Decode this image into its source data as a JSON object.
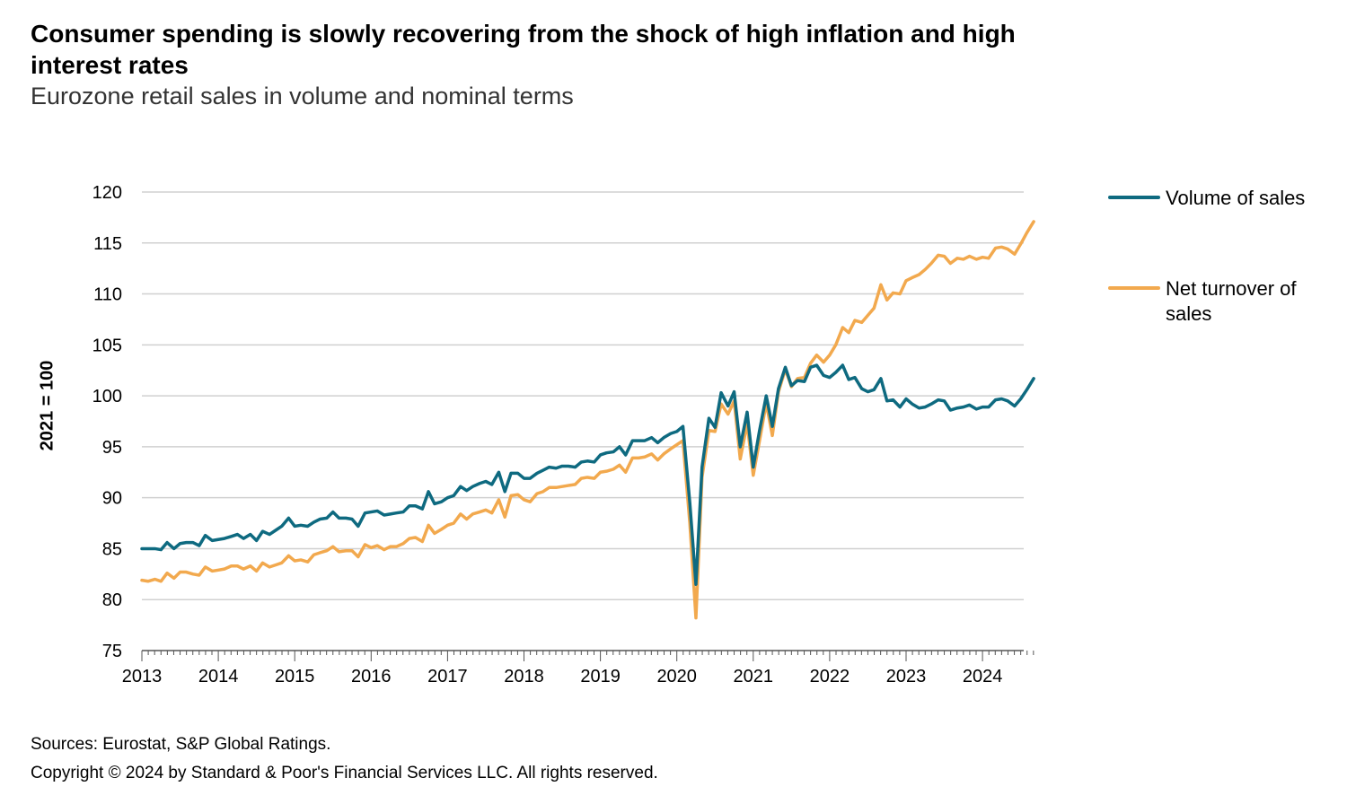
{
  "chart_data": {
    "type": "line",
    "title": "Consumer spending is slowly recovering from the shock of high inflation and high interest rates",
    "subtitle": "Eurozone retail sales in volume and nominal terms",
    "ylabel": "2021 = 100",
    "xlabel": "",
    "ylim": [
      75,
      120
    ],
    "xlim": [
      2013,
      2024.67
    ],
    "yticks": [
      75,
      80,
      85,
      90,
      95,
      100,
      105,
      110,
      115,
      120
    ],
    "xticks": [
      "2013",
      "2014",
      "2015",
      "2016",
      "2017",
      "2018",
      "2019",
      "2020",
      "2021",
      "2022",
      "2023",
      "2024"
    ],
    "grid": true,
    "legend_position": "right",
    "series": [
      {
        "name": "Volume of sales",
        "color": "#0e6a80",
        "points": [
          [
            2013.0,
            85.0
          ],
          [
            2013.08,
            85.0
          ],
          [
            2013.17,
            85.0
          ],
          [
            2013.25,
            84.9
          ],
          [
            2013.33,
            85.6
          ],
          [
            2013.42,
            85.0
          ],
          [
            2013.5,
            85.5
          ],
          [
            2013.58,
            85.6
          ],
          [
            2013.67,
            85.6
          ],
          [
            2013.75,
            85.3
          ],
          [
            2013.83,
            86.3
          ],
          [
            2013.92,
            85.8
          ],
          [
            2014.0,
            85.9
          ],
          [
            2014.08,
            86.0
          ],
          [
            2014.17,
            86.2
          ],
          [
            2014.25,
            86.4
          ],
          [
            2014.33,
            86.0
          ],
          [
            2014.42,
            86.4
          ],
          [
            2014.5,
            85.8
          ],
          [
            2014.58,
            86.7
          ],
          [
            2014.67,
            86.4
          ],
          [
            2014.75,
            86.8
          ],
          [
            2014.83,
            87.2
          ],
          [
            2014.92,
            88.0
          ],
          [
            2015.0,
            87.2
          ],
          [
            2015.08,
            87.3
          ],
          [
            2015.17,
            87.2
          ],
          [
            2015.25,
            87.6
          ],
          [
            2015.33,
            87.9
          ],
          [
            2015.42,
            88.0
          ],
          [
            2015.5,
            88.6
          ],
          [
            2015.58,
            88.0
          ],
          [
            2015.67,
            88.0
          ],
          [
            2015.75,
            87.9
          ],
          [
            2015.83,
            87.2
          ],
          [
            2015.92,
            88.5
          ],
          [
            2016.0,
            88.6
          ],
          [
            2016.08,
            88.7
          ],
          [
            2016.17,
            88.3
          ],
          [
            2016.25,
            88.4
          ],
          [
            2016.33,
            88.5
          ],
          [
            2016.42,
            88.6
          ],
          [
            2016.5,
            89.2
          ],
          [
            2016.58,
            89.2
          ],
          [
            2016.67,
            88.9
          ],
          [
            2016.75,
            90.6
          ],
          [
            2016.83,
            89.4
          ],
          [
            2016.92,
            89.6
          ],
          [
            2017.0,
            90.0
          ],
          [
            2017.08,
            90.2
          ],
          [
            2017.17,
            91.1
          ],
          [
            2017.25,
            90.7
          ],
          [
            2017.33,
            91.1
          ],
          [
            2017.42,
            91.4
          ],
          [
            2017.5,
            91.6
          ],
          [
            2017.58,
            91.3
          ],
          [
            2017.67,
            92.5
          ],
          [
            2017.75,
            90.6
          ],
          [
            2017.83,
            92.4
          ],
          [
            2017.92,
            92.4
          ],
          [
            2018.0,
            91.9
          ],
          [
            2018.08,
            91.9
          ],
          [
            2018.17,
            92.4
          ],
          [
            2018.25,
            92.7
          ],
          [
            2018.33,
            93.0
          ],
          [
            2018.42,
            92.9
          ],
          [
            2018.5,
            93.1
          ],
          [
            2018.58,
            93.1
          ],
          [
            2018.67,
            93.0
          ],
          [
            2018.75,
            93.5
          ],
          [
            2018.83,
            93.6
          ],
          [
            2018.92,
            93.5
          ],
          [
            2019.0,
            94.2
          ],
          [
            2019.08,
            94.4
          ],
          [
            2019.17,
            94.5
          ],
          [
            2019.25,
            95.0
          ],
          [
            2019.33,
            94.2
          ],
          [
            2019.42,
            95.6
          ],
          [
            2019.5,
            95.6
          ],
          [
            2019.58,
            95.6
          ],
          [
            2019.67,
            95.9
          ],
          [
            2019.75,
            95.4
          ],
          [
            2019.83,
            95.9
          ],
          [
            2019.92,
            96.3
          ],
          [
            2020.0,
            96.5
          ],
          [
            2020.08,
            97.0
          ],
          [
            2020.17,
            89.5
          ],
          [
            2020.25,
            81.5
          ],
          [
            2020.33,
            93.0
          ],
          [
            2020.42,
            97.8
          ],
          [
            2020.5,
            96.9
          ],
          [
            2020.58,
            100.3
          ],
          [
            2020.67,
            99.0
          ],
          [
            2020.75,
            100.4
          ],
          [
            2020.83,
            95.0
          ],
          [
            2020.92,
            98.4
          ],
          [
            2021.0,
            93.0
          ],
          [
            2021.08,
            96.5
          ],
          [
            2021.17,
            100.0
          ],
          [
            2021.25,
            97.0
          ],
          [
            2021.33,
            100.7
          ],
          [
            2021.42,
            102.8
          ],
          [
            2021.5,
            101.0
          ],
          [
            2021.58,
            101.5
          ],
          [
            2021.67,
            101.4
          ],
          [
            2021.75,
            102.8
          ],
          [
            2021.83,
            103.0
          ],
          [
            2021.92,
            102.0
          ],
          [
            2022.0,
            101.8
          ],
          [
            2022.08,
            102.3
          ],
          [
            2022.17,
            103.0
          ],
          [
            2022.25,
            101.6
          ],
          [
            2022.33,
            101.8
          ],
          [
            2022.42,
            100.7
          ],
          [
            2022.5,
            100.4
          ],
          [
            2022.58,
            100.6
          ],
          [
            2022.67,
            101.7
          ],
          [
            2022.75,
            99.5
          ],
          [
            2022.83,
            99.6
          ],
          [
            2022.92,
            98.9
          ],
          [
            2023.0,
            99.7
          ],
          [
            2023.08,
            99.2
          ],
          [
            2023.17,
            98.8
          ],
          [
            2023.25,
            98.9
          ],
          [
            2023.33,
            99.2
          ],
          [
            2023.42,
            99.6
          ],
          [
            2023.5,
            99.5
          ],
          [
            2023.58,
            98.6
          ],
          [
            2023.67,
            98.8
          ],
          [
            2023.75,
            98.9
          ],
          [
            2023.83,
            99.1
          ],
          [
            2023.92,
            98.7
          ],
          [
            2024.0,
            98.9
          ],
          [
            2024.08,
            98.9
          ],
          [
            2024.17,
            99.6
          ],
          [
            2024.25,
            99.7
          ],
          [
            2024.33,
            99.5
          ],
          [
            2024.42,
            99.0
          ],
          [
            2024.5,
            99.7
          ],
          [
            2024.58,
            100.6
          ],
          [
            2024.67,
            101.7
          ]
        ]
      },
      {
        "name": "Net turnover of sales",
        "color": "#f2a94e",
        "points": [
          [
            2013.0,
            81.9
          ],
          [
            2013.08,
            81.8
          ],
          [
            2013.17,
            82.0
          ],
          [
            2013.25,
            81.8
          ],
          [
            2013.33,
            82.6
          ],
          [
            2013.42,
            82.1
          ],
          [
            2013.5,
            82.7
          ],
          [
            2013.58,
            82.7
          ],
          [
            2013.67,
            82.5
          ],
          [
            2013.75,
            82.4
          ],
          [
            2013.83,
            83.2
          ],
          [
            2013.92,
            82.8
          ],
          [
            2014.0,
            82.9
          ],
          [
            2014.08,
            83.0
          ],
          [
            2014.17,
            83.3
          ],
          [
            2014.25,
            83.3
          ],
          [
            2014.33,
            83.0
          ],
          [
            2014.42,
            83.3
          ],
          [
            2014.5,
            82.8
          ],
          [
            2014.58,
            83.6
          ],
          [
            2014.67,
            83.2
          ],
          [
            2014.75,
            83.4
          ],
          [
            2014.83,
            83.6
          ],
          [
            2014.92,
            84.3
          ],
          [
            2015.0,
            83.8
          ],
          [
            2015.08,
            83.9
          ],
          [
            2015.17,
            83.7
          ],
          [
            2015.25,
            84.4
          ],
          [
            2015.33,
            84.6
          ],
          [
            2015.42,
            84.8
          ],
          [
            2015.5,
            85.2
          ],
          [
            2015.58,
            84.7
          ],
          [
            2015.67,
            84.8
          ],
          [
            2015.75,
            84.8
          ],
          [
            2015.83,
            84.2
          ],
          [
            2015.92,
            85.4
          ],
          [
            2016.0,
            85.1
          ],
          [
            2016.08,
            85.3
          ],
          [
            2016.17,
            84.9
          ],
          [
            2016.25,
            85.2
          ],
          [
            2016.33,
            85.2
          ],
          [
            2016.42,
            85.5
          ],
          [
            2016.5,
            86.0
          ],
          [
            2016.58,
            86.1
          ],
          [
            2016.67,
            85.7
          ],
          [
            2016.75,
            87.3
          ],
          [
            2016.83,
            86.5
          ],
          [
            2016.92,
            86.9
          ],
          [
            2017.0,
            87.3
          ],
          [
            2017.08,
            87.5
          ],
          [
            2017.17,
            88.4
          ],
          [
            2017.25,
            87.9
          ],
          [
            2017.33,
            88.4
          ],
          [
            2017.42,
            88.6
          ],
          [
            2017.5,
            88.8
          ],
          [
            2017.58,
            88.5
          ],
          [
            2017.67,
            89.8
          ],
          [
            2017.75,
            88.1
          ],
          [
            2017.83,
            90.2
          ],
          [
            2017.92,
            90.3
          ],
          [
            2018.0,
            89.8
          ],
          [
            2018.08,
            89.6
          ],
          [
            2018.17,
            90.4
          ],
          [
            2018.25,
            90.6
          ],
          [
            2018.33,
            91.0
          ],
          [
            2018.42,
            91.0
          ],
          [
            2018.5,
            91.1
          ],
          [
            2018.58,
            91.2
          ],
          [
            2018.67,
            91.3
          ],
          [
            2018.75,
            91.9
          ],
          [
            2018.83,
            92.0
          ],
          [
            2018.92,
            91.9
          ],
          [
            2019.0,
            92.5
          ],
          [
            2019.08,
            92.6
          ],
          [
            2019.17,
            92.8
          ],
          [
            2019.25,
            93.2
          ],
          [
            2019.33,
            92.5
          ],
          [
            2019.42,
            93.9
          ],
          [
            2019.5,
            93.9
          ],
          [
            2019.58,
            94.0
          ],
          [
            2019.67,
            94.3
          ],
          [
            2019.75,
            93.7
          ],
          [
            2019.83,
            94.3
          ],
          [
            2019.92,
            94.8
          ],
          [
            2020.0,
            95.2
          ],
          [
            2020.08,
            95.6
          ],
          [
            2020.17,
            87.5
          ],
          [
            2020.25,
            78.2
          ],
          [
            2020.33,
            92.0
          ],
          [
            2020.42,
            96.6
          ],
          [
            2020.5,
            96.5
          ],
          [
            2020.58,
            99.2
          ],
          [
            2020.67,
            98.2
          ],
          [
            2020.75,
            99.5
          ],
          [
            2020.83,
            93.8
          ],
          [
            2020.92,
            97.3
          ],
          [
            2021.0,
            92.2
          ],
          [
            2021.08,
            95.5
          ],
          [
            2021.17,
            99.3
          ],
          [
            2021.25,
            96.1
          ],
          [
            2021.33,
            100.4
          ],
          [
            2021.42,
            102.6
          ],
          [
            2021.5,
            100.9
          ],
          [
            2021.58,
            101.7
          ],
          [
            2021.67,
            101.8
          ],
          [
            2021.75,
            103.2
          ],
          [
            2021.83,
            104.0
          ],
          [
            2021.92,
            103.3
          ],
          [
            2022.0,
            104.0
          ],
          [
            2022.08,
            105.0
          ],
          [
            2022.17,
            106.7
          ],
          [
            2022.25,
            106.2
          ],
          [
            2022.33,
            107.4
          ],
          [
            2022.42,
            107.2
          ],
          [
            2022.5,
            107.9
          ],
          [
            2022.58,
            108.6
          ],
          [
            2022.67,
            110.9
          ],
          [
            2022.75,
            109.4
          ],
          [
            2022.83,
            110.1
          ],
          [
            2022.92,
            110.0
          ],
          [
            2023.0,
            111.3
          ],
          [
            2023.08,
            111.6
          ],
          [
            2023.17,
            111.9
          ],
          [
            2023.25,
            112.4
          ],
          [
            2023.33,
            113.0
          ],
          [
            2023.42,
            113.8
          ],
          [
            2023.5,
            113.7
          ],
          [
            2023.58,
            113.0
          ],
          [
            2023.67,
            113.5
          ],
          [
            2023.75,
            113.4
          ],
          [
            2023.83,
            113.7
          ],
          [
            2023.92,
            113.4
          ],
          [
            2024.0,
            113.6
          ],
          [
            2024.08,
            113.5
          ],
          [
            2024.17,
            114.5
          ],
          [
            2024.25,
            114.6
          ],
          [
            2024.33,
            114.4
          ],
          [
            2024.42,
            113.9
          ],
          [
            2024.5,
            114.9
          ],
          [
            2024.58,
            116.0
          ],
          [
            2024.67,
            117.1
          ]
        ]
      }
    ]
  },
  "footer": {
    "source": "Sources: Eurostat, S&P Global Ratings.",
    "copyright": "Copyright © 2024 by Standard & Poor's Financial Services LLC. All rights reserved."
  }
}
